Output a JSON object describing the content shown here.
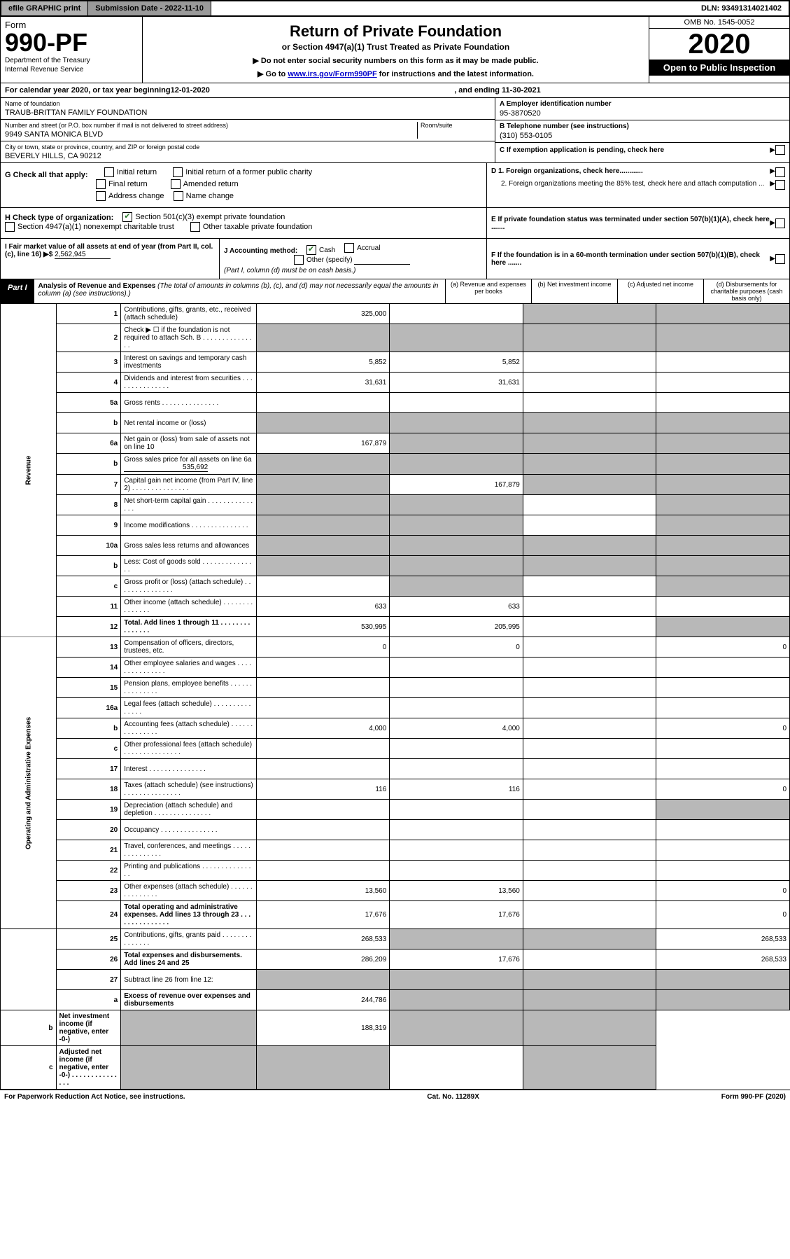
{
  "topbar": {
    "efile": "efile GRAPHIC print",
    "submission": "Submission Date - 2022-11-10",
    "dln": "DLN: 93491314021402"
  },
  "header": {
    "form": "Form",
    "no": "990-PF",
    "dept": "Department of the Treasury",
    "irs": "Internal Revenue Service",
    "title": "Return of Private Foundation",
    "sub1": "or Section 4947(a)(1) Trust Treated as Private Foundation",
    "sub2a": "▶ Do not enter social security numbers on this form as it may be made public.",
    "sub2b": "▶ Go to ",
    "link": "www.irs.gov/Form990PF",
    "sub2c": " for instructions and the latest information.",
    "omb": "OMB No. 1545-0052",
    "year": "2020",
    "open": "Open to Public Inspection"
  },
  "cal": {
    "a": "For calendar year 2020, or tax year beginning ",
    "begin": "12-01-2020",
    "b": ", and ending ",
    "end": "11-30-2021"
  },
  "info": {
    "name_lbl": "Name of foundation",
    "name": "TRAUB-BRITTAN FAMILY FOUNDATION",
    "addr_lbl": "Number and street (or P.O. box number if mail is not delivered to street address)",
    "room_lbl": "Room/suite",
    "addr": "9949 SANTA MONICA BLVD",
    "city_lbl": "City or town, state or province, country, and ZIP or foreign postal code",
    "city": "BEVERLY HILLS, CA  90212",
    "a_lbl": "A Employer identification number",
    "a": "95-3870520",
    "b_lbl": "B Telephone number (see instructions)",
    "b": "(310) 553-0105",
    "c_lbl": "C If exemption application is pending, check here",
    "d1": "D 1. Foreign organizations, check here............",
    "d2": "2. Foreign organizations meeting the 85% test, check here and attach computation ...",
    "e": "E  If private foundation status was terminated under section 507(b)(1)(A), check here .......",
    "f": "F  If the foundation is in a 60-month termination under section 507(b)(1)(B), check here ......."
  },
  "g": {
    "lbl": "G Check all that apply:",
    "initial": "Initial return",
    "initial_pub": "Initial return of a former public charity",
    "final": "Final return",
    "amended": "Amended return",
    "addr": "Address change",
    "name": "Name change"
  },
  "h": {
    "lbl": "H Check type of organization:",
    "s501": "Section 501(c)(3) exempt private foundation",
    "s4947": "Section 4947(a)(1) nonexempt charitable trust",
    "other": "Other taxable private foundation"
  },
  "i": {
    "lbl": "I Fair market value of all assets at end of year (from Part II, col. (c), line 16) ▶$",
    "val": "2,562,945"
  },
  "j": {
    "lbl": "J Accounting method:",
    "cash": "Cash",
    "accrual": "Accrual",
    "other": "Other (specify)",
    "note": "(Part I, column (d) must be on cash basis.)"
  },
  "part1": {
    "lbl": "Part I",
    "title": "Analysis of Revenue and Expenses",
    "note": "(The total of amounts in columns (b), (c), and (d) may not necessarily equal the amounts in column (a) (see instructions).)",
    "ca": "(a)   Revenue and expenses per books",
    "cb": "(b)   Net investment income",
    "cc": "(c)  Adjusted net income",
    "cd": "(d)  Disbursements for charitable purposes (cash basis only)"
  },
  "side": {
    "rev": "Revenue",
    "exp": "Operating and Administrative Expenses"
  },
  "rows": [
    {
      "n": "1",
      "d": "Contributions, gifts, grants, etc., received (attach schedule)",
      "a": "325,000",
      "sb": false,
      "sc": true,
      "sd": true
    },
    {
      "n": "2",
      "d": "Check ▶ ☐ if the foundation is not required to attach Sch. B",
      "dots": true,
      "sa": true,
      "sb": true,
      "sc": true,
      "sd": true,
      "noamt": true
    },
    {
      "n": "3",
      "d": "Interest on savings and temporary cash investments",
      "a": "5,852",
      "b": "5,852"
    },
    {
      "n": "4",
      "d": "Dividends and interest from securities",
      "dots": true,
      "a": "31,631",
      "b": "31,631"
    },
    {
      "n": "5a",
      "d": "Gross rents",
      "dots": true
    },
    {
      "n": "b",
      "d": "Net rental income or (loss)",
      "inline": true,
      "sa": true,
      "sb": true,
      "sc": true,
      "sd": true
    },
    {
      "n": "6a",
      "d": "Net gain or (loss) from sale of assets not on line 10",
      "a": "167,879",
      "sb": true,
      "sc": true,
      "sd": true
    },
    {
      "n": "b",
      "d": "Gross sales price for all assets on line 6a",
      "inline_val": "535,692",
      "sa": true,
      "sb": true,
      "sc": true,
      "sd": true
    },
    {
      "n": "7",
      "d": "Capital gain net income (from Part IV, line 2)",
      "dots": true,
      "sa": true,
      "b": "167,879",
      "sc": true,
      "sd": true
    },
    {
      "n": "8",
      "d": "Net short-term capital gain",
      "dots": true,
      "sa": true,
      "sb": true,
      "sd": true
    },
    {
      "n": "9",
      "d": "Income modifications",
      "dots": true,
      "sa": true,
      "sb": true,
      "sd": true
    },
    {
      "n": "10a",
      "d": "Gross sales less returns and allowances",
      "inline": true,
      "sa": true,
      "sb": true,
      "sc": true,
      "sd": true
    },
    {
      "n": "b",
      "d": "Less: Cost of goods sold",
      "dots": true,
      "inline": true,
      "sa": true,
      "sb": true,
      "sc": true,
      "sd": true
    },
    {
      "n": "c",
      "d": "Gross profit or (loss) (attach schedule)",
      "dots": true,
      "sb": true,
      "sd": true
    },
    {
      "n": "11",
      "d": "Other income (attach schedule)",
      "dots": true,
      "a": "633",
      "b": "633"
    },
    {
      "n": "12",
      "d": "Total. Add lines 1 through 11",
      "dots": true,
      "bold": true,
      "a": "530,995",
      "b": "205,995",
      "sd": true
    },
    {
      "n": "13",
      "d": "Compensation of officers, directors, trustees, etc.",
      "a": "0",
      "b": "0",
      "dd": "0"
    },
    {
      "n": "14",
      "d": "Other employee salaries and wages",
      "dots": true
    },
    {
      "n": "15",
      "d": "Pension plans, employee benefits",
      "dots": true
    },
    {
      "n": "16a",
      "d": "Legal fees (attach schedule)",
      "dots": true
    },
    {
      "n": "b",
      "d": "Accounting fees (attach schedule)",
      "dots": true,
      "a": "4,000",
      "b": "4,000",
      "dd": "0"
    },
    {
      "n": "c",
      "d": "Other professional fees (attach schedule)",
      "dots": true
    },
    {
      "n": "17",
      "d": "Interest",
      "dots": true
    },
    {
      "n": "18",
      "d": "Taxes (attach schedule) (see instructions)",
      "dots": true,
      "a": "116",
      "b": "116",
      "dd": "0"
    },
    {
      "n": "19",
      "d": "Depreciation (attach schedule) and depletion",
      "dots": true,
      "sd": true
    },
    {
      "n": "20",
      "d": "Occupancy",
      "dots": true
    },
    {
      "n": "21",
      "d": "Travel, conferences, and meetings",
      "dots": true
    },
    {
      "n": "22",
      "d": "Printing and publications",
      "dots": true
    },
    {
      "n": "23",
      "d": "Other expenses (attach schedule)",
      "dots": true,
      "a": "13,560",
      "b": "13,560",
      "dd": "0"
    },
    {
      "n": "24",
      "d": "Total operating and administrative expenses. Add lines 13 through 23",
      "dots": true,
      "bold": true,
      "a": "17,676",
      "b": "17,676",
      "dd": "0"
    },
    {
      "n": "25",
      "d": "Contributions, gifts, grants paid",
      "dots": true,
      "a": "268,533",
      "sb": true,
      "sc": true,
      "dd": "268,533"
    },
    {
      "n": "26",
      "d": "Total expenses and disbursements. Add lines 24 and 25",
      "bold": true,
      "a": "286,209",
      "b": "17,676",
      "dd": "268,533"
    },
    {
      "n": "27",
      "d": "Subtract line 26 from line 12:",
      "sa": true,
      "sb": true,
      "sc": true,
      "sd": true
    },
    {
      "n": "a",
      "d": "Excess of revenue over expenses and disbursements",
      "bold": true,
      "a": "244,786",
      "sb": true,
      "sc": true,
      "sd": true
    },
    {
      "n": "b",
      "d": "Net investment income (if negative, enter -0-)",
      "bold": true,
      "sa": true,
      "b": "188,319",
      "sc": true,
      "sd": true
    },
    {
      "n": "c",
      "d": "Adjusted net income (if negative, enter -0-)",
      "dots": true,
      "bold": true,
      "sa": true,
      "sb": true,
      "sd": true
    }
  ],
  "footer": {
    "a": "For Paperwork Reduction Act Notice, see instructions.",
    "b": "Cat. No. 11289X",
    "c": "Form 990-PF (2020)"
  }
}
